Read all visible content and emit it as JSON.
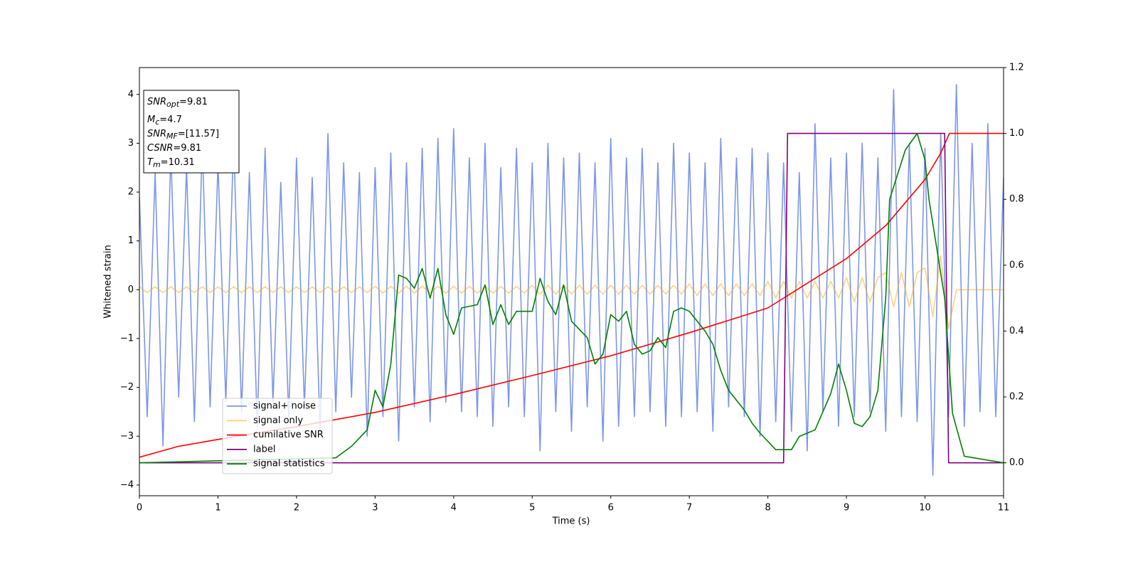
{
  "chart_data": {
    "type": "line",
    "xlabel": "Time (s)",
    "ylabel": "Whitened strain",
    "xlim": [
      0,
      11
    ],
    "ylim": [
      -4.22,
      4.55
    ],
    "y2lim": [
      -0.1,
      1.2
    ],
    "xticks": [
      0,
      1,
      2,
      3,
      4,
      5,
      6,
      7,
      8,
      9,
      10,
      11
    ],
    "yticks": [
      {
        "value": -4,
        "label": "−4"
      },
      {
        "value": -3,
        "label": "−3"
      },
      {
        "value": -2,
        "label": "−2"
      },
      {
        "value": -1,
        "label": "−1"
      },
      0,
      1,
      2,
      3,
      4
    ],
    "y2ticks": [
      {
        "value": 0,
        "label": "0.0"
      },
      0.2,
      0.4,
      0.6,
      0.8,
      {
        "value": 1,
        "label": "1.0"
      },
      1.2
    ],
    "legend": "lower left",
    "annotations": [
      {
        "main": "SNR",
        "sub": "opt",
        "rest": "=9.81"
      },
      {
        "main": "M",
        "sub": "c",
        "rest": "=4.7"
      },
      {
        "main": "SNR",
        "sub": "MF",
        "rest": "=[11.57]"
      },
      {
        "main": "CSNR",
        "rest": "=9.81"
      },
      {
        "main": "T",
        "sub": "m",
        "rest": "=10.31"
      }
    ],
    "x": [
      0,
      0.1,
      0.2,
      0.3,
      0.4,
      0.5,
      0.6,
      0.7,
      0.8,
      0.9,
      1,
      1.1,
      1.2,
      1.3,
      1.4,
      1.5,
      1.6,
      1.7,
      1.8,
      1.9,
      2,
      2.1,
      2.2,
      2.3,
      2.4,
      2.5,
      2.6,
      2.7,
      2.8,
      2.9,
      3,
      3.1,
      3.2,
      3.3,
      3.4,
      3.5,
      3.6,
      3.7,
      3.8,
      3.9,
      4,
      4.1,
      4.2,
      4.3,
      4.4,
      4.5,
      4.6,
      4.7,
      4.8,
      4.9,
      5,
      5.1,
      5.2,
      5.3,
      5.4,
      5.5,
      5.6,
      5.7,
      5.8,
      5.9,
      6,
      6.1,
      6.2,
      6.3,
      6.4,
      6.5,
      6.6,
      6.7,
      6.8,
      6.9,
      7,
      7.1,
      7.2,
      7.3,
      7.4,
      7.5,
      7.6,
      7.7,
      7.8,
      7.9,
      8,
      8.1,
      8.2,
      8.3,
      8.4,
      8.5,
      8.6,
      8.7,
      8.8,
      8.9,
      9,
      9.1,
      9.2,
      9.3,
      9.4,
      9.5,
      9.6,
      9.7,
      9.8,
      9.9,
      10,
      10.1,
      10.2,
      10.3,
      10.4,
      10.5,
      10.6,
      10.7,
      10.8,
      10.9,
      11
    ],
    "series": [
      {
        "name": "signal+ noise",
        "color": "#6f8be6",
        "opacity": 0.9,
        "values": [
          1.9,
          -2.6,
          2.4,
          -3.2,
          2.8,
          -2.2,
          2.5,
          -2.7,
          3.0,
          -2.4,
          2.6,
          -2.3,
          3.1,
          -2.5,
          2.4,
          -2.8,
          2.9,
          -2.3,
          2.2,
          -2.6,
          2.7,
          -2.4,
          2.3,
          -2.9,
          3.2,
          -2.5,
          2.6,
          -2.2,
          2.4,
          -3.0,
          2.5,
          -2.6,
          2.8,
          -3.1,
          2.6,
          -2.4,
          2.9,
          -2.7,
          3.1,
          -2.3,
          3.3,
          -2.5,
          2.7,
          -2.6,
          3.0,
          -2.8,
          2.5,
          -2.4,
          2.9,
          -2.6,
          2.6,
          -3.3,
          3.0,
          -2.5,
          2.7,
          -2.9,
          2.8,
          -2.4,
          2.6,
          -3.1,
          3.1,
          -2.8,
          2.7,
          -2.6,
          2.9,
          -2.5,
          2.6,
          -2.8,
          3.0,
          -2.6,
          2.8,
          -2.5,
          2.6,
          -2.9,
          3.1,
          -2.4,
          2.7,
          -2.6,
          2.9,
          -3.0,
          2.8,
          -2.7,
          2.6,
          -2.9,
          2.4,
          -3.3,
          3.4,
          -2.5,
          2.7,
          -2.8,
          2.8,
          -2.6,
          3.0,
          -2.5,
          2.7,
          -2.9,
          4.1,
          -2.6,
          3.0,
          -2.7,
          2.9,
          -3.8,
          3.2,
          -2.6,
          4.2,
          -2.8,
          3.0,
          -2.5,
          3.4,
          -2.6,
          2.3
        ]
      },
      {
        "name": "signal only",
        "color": "#ffa500",
        "opacity": 0.5,
        "values": [
          0.06,
          -0.06,
          0.06,
          -0.06,
          0.06,
          -0.06,
          0.06,
          -0.06,
          0.06,
          -0.06,
          0.06,
          -0.06,
          0.06,
          -0.06,
          0.06,
          -0.06,
          0.06,
          -0.06,
          0.06,
          -0.06,
          0.06,
          -0.06,
          0.06,
          -0.06,
          0.06,
          -0.06,
          0.06,
          -0.06,
          0.06,
          -0.06,
          0.07,
          -0.07,
          0.07,
          -0.07,
          0.07,
          -0.07,
          0.07,
          -0.07,
          0.07,
          -0.07,
          0.07,
          -0.07,
          0.07,
          -0.07,
          0.07,
          -0.07,
          0.07,
          -0.07,
          0.07,
          -0.07,
          0.09,
          -0.09,
          0.09,
          -0.09,
          0.09,
          -0.09,
          0.09,
          -0.09,
          0.09,
          -0.09,
          0.09,
          -0.09,
          0.09,
          -0.09,
          0.09,
          -0.09,
          0.09,
          -0.09,
          0.09,
          -0.09,
          0.12,
          -0.12,
          0.12,
          -0.12,
          0.12,
          -0.12,
          0.12,
          -0.12,
          0.12,
          -0.12,
          0.17,
          -0.17,
          0.17,
          -0.17,
          0.17,
          -0.17,
          0.17,
          -0.17,
          0.17,
          -0.17,
          0.25,
          -0.25,
          0.25,
          -0.25,
          0.25,
          0.35,
          -0.35,
          0.35,
          -0.35,
          0.35,
          0.45,
          -0.55,
          0.7,
          -0.8,
          0,
          0,
          0,
          0,
          0,
          0,
          0
        ]
      },
      {
        "name": "cumilative SNR",
        "color": "#ff0000",
        "axis": "y2",
        "x": [
          0,
          0.5,
          1,
          2,
          3,
          4,
          5,
          6,
          7,
          8,
          9,
          9.5,
          10,
          10.2,
          10.31,
          11
        ],
        "values": [
          0.017,
          0.05,
          0.071,
          0.11,
          0.153,
          0.207,
          0.265,
          0.325,
          0.395,
          0.47,
          0.62,
          0.72,
          0.86,
          0.94,
          1.0,
          1.0
        ]
      },
      {
        "name": "label",
        "color": "#800080",
        "axis": "y2",
        "x": [
          0,
          8.2,
          8.25,
          10.25,
          10.3,
          11
        ],
        "values": [
          0,
          0,
          1,
          1,
          0,
          0
        ]
      },
      {
        "name": "signal statistics",
        "color": "#008000",
        "axis": "y2",
        "x": [
          0,
          2.5,
          2.7,
          2.9,
          3.0,
          3.1,
          3.2,
          3.3,
          3.4,
          3.5,
          3.6,
          3.7,
          3.8,
          3.9,
          4.0,
          4.1,
          4.3,
          4.4,
          4.5,
          4.6,
          4.7,
          4.8,
          5.0,
          5.1,
          5.2,
          5.3,
          5.4,
          5.5,
          5.7,
          5.8,
          5.9,
          6.0,
          6.1,
          6.2,
          6.3,
          6.4,
          6.5,
          6.6,
          6.7,
          6.8,
          6.9,
          7.0,
          7.2,
          7.3,
          7.4,
          7.5,
          7.7,
          7.8,
          7.9,
          8.1,
          8.3,
          8.4,
          8.5,
          8.6,
          8.8,
          8.9,
          9.0,
          9.1,
          9.2,
          9.3,
          9.4,
          9.5,
          9.55,
          9.75,
          9.9,
          10.0,
          10.05,
          10.25,
          10.35,
          10.5,
          11
        ],
        "values": [
          0,
          0.015,
          0.05,
          0.1,
          0.22,
          0.17,
          0.3,
          0.57,
          0.56,
          0.53,
          0.59,
          0.5,
          0.59,
          0.45,
          0.39,
          0.47,
          0.48,
          0.54,
          0.42,
          0.48,
          0.42,
          0.46,
          0.46,
          0.56,
          0.49,
          0.45,
          0.54,
          0.43,
          0.38,
          0.3,
          0.33,
          0.45,
          0.43,
          0.46,
          0.36,
          0.33,
          0.34,
          0.38,
          0.35,
          0.46,
          0.47,
          0.46,
          0.4,
          0.36,
          0.28,
          0.22,
          0.16,
          0.12,
          0.09,
          0.04,
          0.04,
          0.08,
          0.09,
          0.1,
          0.21,
          0.3,
          0.22,
          0.12,
          0.11,
          0.14,
          0.22,
          0.5,
          0.8,
          0.95,
          1.0,
          0.92,
          0.8,
          0.5,
          0.15,
          0.02,
          0
        ]
      }
    ]
  }
}
